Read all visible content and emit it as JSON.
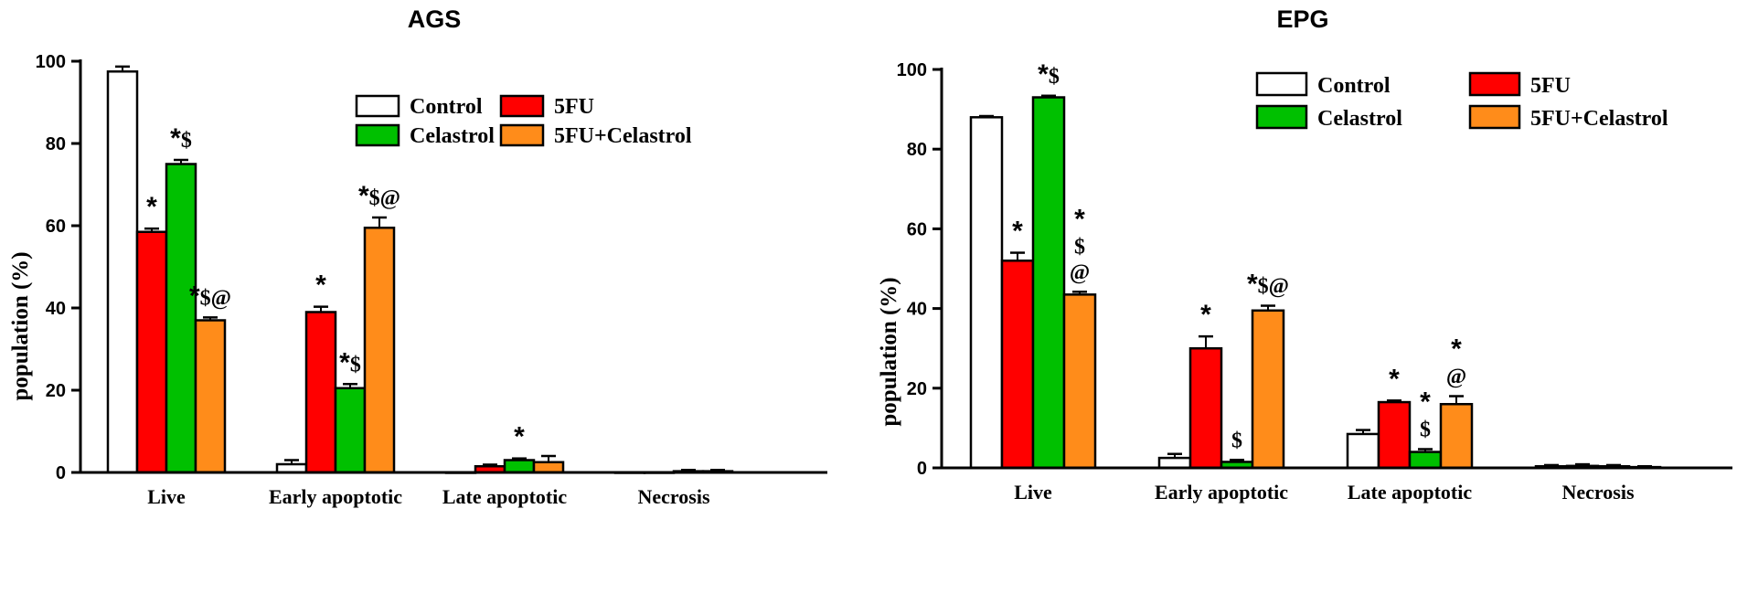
{
  "colors": {
    "Control": "#ffffff",
    "5FU": "#ff0000",
    "Celastrol": "#00c000",
    "5FU+Celastrol": "#ff8c1a"
  },
  "chart_data": [
    {
      "type": "bar",
      "title": "AGS",
      "xlabel": "",
      "ylabel": "population (%)",
      "ylim": [
        0,
        100
      ],
      "yticks": [
        "0",
        "20",
        "40",
        "60",
        "80",
        "100"
      ],
      "categories": [
        "Live",
        "Early apoptotic",
        "Late apoptotic",
        "Necrosis"
      ],
      "legend": {
        "placement": "top-right",
        "entries": [
          "Control",
          "5FU",
          "Celastrol",
          "5FU+Celastrol"
        ]
      },
      "series": [
        {
          "name": "Control",
          "values": [
            97.5,
            2,
            0,
            0
          ],
          "errors": [
            1.2,
            1.0,
            0,
            0
          ]
        },
        {
          "name": "5FU",
          "values": [
            58.5,
            39,
            1.5,
            0
          ],
          "errors": [
            0.8,
            1.3,
            0.4,
            0
          ]
        },
        {
          "name": "Celastrol",
          "values": [
            75,
            20.5,
            3,
            0.3
          ],
          "errors": [
            1.0,
            1.0,
            0.4,
            0.3
          ]
        },
        {
          "name": "5FU+Celastrol",
          "values": [
            37,
            59.5,
            2.5,
            0.3
          ],
          "errors": [
            0.7,
            2.5,
            1.5,
            0.3
          ]
        }
      ],
      "annotations": [
        {
          "category": 0,
          "series": 1,
          "text": "*"
        },
        {
          "category": 0,
          "series": 2,
          "text": "*$"
        },
        {
          "category": 0,
          "series": 3,
          "text": "*$@"
        },
        {
          "category": 1,
          "series": 1,
          "text": "*"
        },
        {
          "category": 1,
          "series": 2,
          "text": "*$"
        },
        {
          "category": 1,
          "series": 3,
          "text": "*$@"
        },
        {
          "category": 2,
          "series": 2,
          "text": "*"
        }
      ]
    },
    {
      "type": "bar",
      "title": "EPG",
      "xlabel": "",
      "ylabel": "population (%)",
      "ylim": [
        0,
        100
      ],
      "yticks": [
        "0",
        "20",
        "40",
        "60",
        "80",
        "100"
      ],
      "categories": [
        "Live",
        "Early apoptotic",
        "Late apoptotic",
        "Necrosis"
      ],
      "legend": {
        "placement": "top-right",
        "entries": [
          "Control",
          "5FU",
          "Celastrol",
          "5FU+Celastrol"
        ]
      },
      "series": [
        {
          "name": "Control",
          "values": [
            88,
            2.5,
            8.5,
            0.4
          ],
          "errors": [
            0.3,
            1.0,
            1.0,
            0.3
          ]
        },
        {
          "name": "5FU",
          "values": [
            52,
            30,
            16.5,
            0.5
          ],
          "errors": [
            2.0,
            3.0,
            0.4,
            0.4
          ]
        },
        {
          "name": "Celastrol",
          "values": [
            93,
            1.5,
            4,
            0.4
          ],
          "errors": [
            0.4,
            0.5,
            0.7,
            0.3
          ]
        },
        {
          "name": "5FU+Celastrol",
          "values": [
            43.5,
            39.5,
            16,
            0.2
          ],
          "errors": [
            0.7,
            1.2,
            2.0,
            0.2
          ]
        }
      ],
      "annotations": [
        {
          "category": 0,
          "series": 1,
          "text": "*"
        },
        {
          "category": 0,
          "series": 2,
          "text": "*$"
        },
        {
          "category": 0,
          "series": 3,
          "text": "*\n$\n@"
        },
        {
          "category": 1,
          "series": 1,
          "text": "*"
        },
        {
          "category": 1,
          "series": 2,
          "text": "$"
        },
        {
          "category": 1,
          "series": 3,
          "text": "*$@"
        },
        {
          "category": 2,
          "series": 1,
          "text": "*"
        },
        {
          "category": 2,
          "series": 2,
          "text": "*\n$"
        },
        {
          "category": 2,
          "series": 3,
          "text": "*\n@"
        }
      ]
    }
  ]
}
